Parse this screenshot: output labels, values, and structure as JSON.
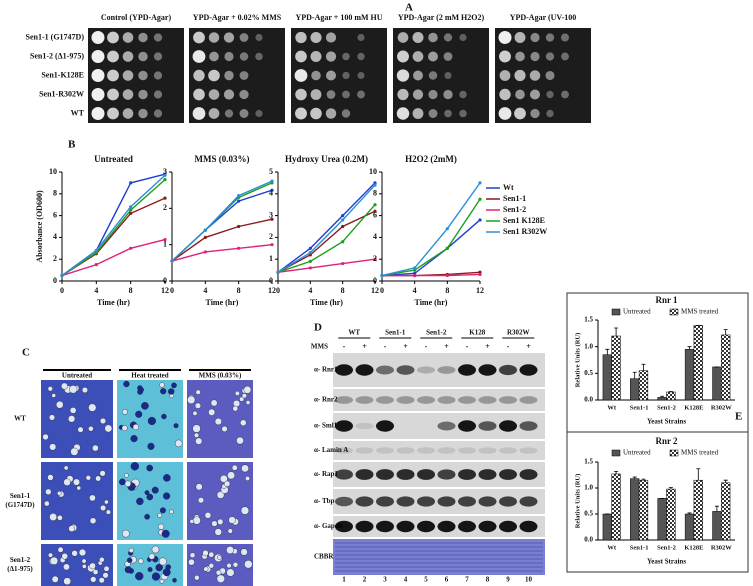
{
  "panel_labels": [
    "A",
    "B",
    "C",
    "D",
    "E"
  ],
  "panel_a": {
    "conditions": [
      "Control (YPD-Agar)",
      "YPD-Agar + 0.02% MMS",
      "YPD-Agar + 100 mM HU",
      "YPD-Agar (2 mM H2O2)",
      "YPD-Agar (UV-100"
    ],
    "strains": [
      "Sen1-1 (G1747D)",
      "Sen1-2 (Δ1-975)",
      "Sen1-K128E",
      "Sen1-R302W",
      "WT"
    ]
  },
  "chart_data": [
    {
      "type": "line",
      "title": "Untreated",
      "y_label": "Absorbance (OD600)",
      "x_label": "Time (hr)",
      "x": [
        0,
        4,
        8,
        12
      ],
      "xlim": [
        0,
        12
      ],
      "xticks": [
        0,
        4,
        8,
        12
      ],
      "ylim": [
        0,
        10
      ],
      "yticks": [
        0,
        2,
        4,
        6,
        8,
        10
      ],
      "series": [
        {
          "name": "Wt",
          "color": "#1f3fd6",
          "values": [
            0.5,
            2.8,
            9,
            9.8
          ]
        },
        {
          "name": "Sen1-1",
          "color": "#8b1a1a",
          "values": [
            0.5,
            2.5,
            6.2,
            7.6
          ]
        },
        {
          "name": "Sen1-2",
          "color": "#e0207a",
          "values": [
            0.5,
            1.5,
            3,
            3.8
          ]
        },
        {
          "name": "Sen1 K128E",
          "color": "#1e9e1e",
          "values": [
            0.5,
            2.6,
            6.5,
            9.3
          ]
        },
        {
          "name": "Sen1 R302W",
          "color": "#2a8fd8",
          "values": [
            0.5,
            2.8,
            6.8,
            9.7
          ]
        }
      ]
    },
    {
      "type": "line",
      "title": "MMS (0.03%)",
      "x_label": "Time (hr)",
      "x": [
        0,
        4,
        8,
        12
      ],
      "xlim": [
        0,
        12
      ],
      "xticks": [
        0,
        4,
        8,
        12
      ],
      "ylim": [
        0,
        3
      ],
      "yticks": [
        0,
        1,
        2,
        3
      ],
      "series": [
        {
          "name": "Wt",
          "color": "#1f3fd6",
          "values": [
            0.55,
            1.4,
            2.2,
            2.5
          ]
        },
        {
          "name": "Sen1-1",
          "color": "#8b1a1a",
          "values": [
            0.55,
            1.2,
            1.5,
            1.7
          ]
        },
        {
          "name": "Sen1-2",
          "color": "#e0207a",
          "values": [
            0.55,
            0.8,
            0.9,
            1.0
          ]
        },
        {
          "name": "Sen1 K128E",
          "color": "#1e9e1e",
          "values": [
            0.55,
            1.4,
            2.3,
            2.7
          ]
        },
        {
          "name": "Sen1 R302W",
          "color": "#2a8fd8",
          "values": [
            0.55,
            1.4,
            2.35,
            2.75
          ]
        }
      ]
    },
    {
      "type": "line",
      "title": "Hydroxy Urea (0.2M)",
      "x_label": "Time (hr)",
      "x": [
        0,
        4,
        8,
        12
      ],
      "xlim": [
        0,
        12
      ],
      "xticks": [
        0,
        4,
        8,
        12
      ],
      "ylim": [
        0,
        5
      ],
      "yticks": [
        0,
        1,
        2,
        3,
        4,
        5
      ],
      "series": [
        {
          "name": "Wt",
          "color": "#1f3fd6",
          "values": [
            0.4,
            1.5,
            3,
            4.5
          ]
        },
        {
          "name": "Sen1-1",
          "color": "#8b1a1a",
          "values": [
            0.4,
            1.2,
            2.5,
            3.2
          ]
        },
        {
          "name": "Sen1-2",
          "color": "#e0207a",
          "values": [
            0.4,
            0.6,
            0.8,
            1.0
          ]
        },
        {
          "name": "Sen1 K128E",
          "color": "#1e9e1e",
          "values": [
            0.4,
            0.9,
            1.8,
            3.5
          ]
        },
        {
          "name": "Sen1 R302W",
          "color": "#2a8fd8",
          "values": [
            0.4,
            1.3,
            2.8,
            4.4
          ]
        }
      ]
    },
    {
      "type": "line",
      "title": "H2O2 (2mM)",
      "x_label": "Time (hr)",
      "x": [
        0,
        4,
        8,
        12
      ],
      "xlim": [
        0,
        12
      ],
      "xticks": [
        0,
        4,
        8,
        12
      ],
      "ylim": [
        0,
        10
      ],
      "yticks": [
        0,
        2,
        4,
        6,
        8,
        10
      ],
      "series": [
        {
          "name": "Wt",
          "color": "#1f3fd6",
          "values": [
            0.5,
            0.7,
            3,
            5.6
          ]
        },
        {
          "name": "Sen1-1",
          "color": "#8b1a1a",
          "values": [
            0.5,
            0.5,
            0.6,
            0.8
          ]
        },
        {
          "name": "Sen1-2",
          "color": "#e0207a",
          "values": [
            0.5,
            0.5,
            0.5,
            0.6
          ]
        },
        {
          "name": "Sen1 K128E",
          "color": "#1e9e1e",
          "values": [
            0.5,
            1,
            3,
            7.5
          ]
        },
        {
          "name": "Sen1 R302W",
          "color": "#2a8fd8",
          "values": [
            0.5,
            1.2,
            4.8,
            9
          ]
        }
      ]
    },
    {
      "type": "bar",
      "title": "Rnr 1",
      "y_label": "Relative Units (RU)",
      "x_label": "Yeast Strains",
      "categories": [
        "Wt",
        "Sen1-1",
        "Sen1-2",
        "K128E",
        "R302W"
      ],
      "ylim": [
        0,
        1.5
      ],
      "yticks": [
        {
          "value": 0,
          "label": "0.0"
        },
        0.5,
        {
          "value": 1,
          "label": "1.0"
        },
        1.5
      ],
      "series": [
        {
          "name": "Untreated",
          "color": "#555555",
          "values": [
            0.85,
            0.4,
            0.05,
            0.95,
            0.62
          ],
          "errors": [
            0.1,
            0.12,
            0.02,
            0.05,
            0
          ]
        },
        {
          "name": "MMS treated",
          "color": "checkered",
          "values": [
            1.2,
            0.55,
            0.15,
            1.4,
            1.22
          ],
          "errors": [
            0.15,
            0.12,
            0.01,
            0,
            0.1
          ]
        }
      ]
    },
    {
      "type": "bar",
      "title": "Rnr 2",
      "y_label": "Relative Units (RU)",
      "x_label": "Yeast Strains",
      "categories": [
        "Wt",
        "Sen1-1",
        "Sen1-2",
        "K128E",
        "R302W"
      ],
      "ylim": [
        0,
        1.5
      ],
      "yticks": [
        {
          "value": 0,
          "label": "0.0"
        },
        0.5,
        {
          "value": 1,
          "label": "1.0"
        },
        1.5
      ],
      "series": [
        {
          "name": "Untreated",
          "color": "#555555",
          "values": [
            0.5,
            1.18,
            0.8,
            0.5,
            0.55
          ],
          "errors": [
            0,
            0.03,
            0,
            0.02,
            0.1
          ]
        },
        {
          "name": "MMS treated",
          "color": "checkered",
          "values": [
            1.27,
            1.15,
            0.98,
            1.15,
            1.1
          ],
          "errors": [
            0.05,
            0.02,
            0.03,
            0.22,
            0.05
          ]
        }
      ]
    }
  ],
  "panel_c": {
    "columns": [
      "Untreated",
      "Heat treated",
      "MMS (0.03%)"
    ],
    "rows": [
      [
        "WT"
      ],
      [
        "Sen1-1",
        "(G1747D)"
      ],
      [
        "Sen1-2",
        "(Δ1-975)"
      ]
    ]
  },
  "panel_d": {
    "strains": [
      "WT",
      "Sen1-1",
      "Sen1-2",
      "K128",
      "R302W"
    ],
    "treatment_label": "MMS",
    "treatment_marks": [
      "-",
      "+"
    ],
    "antibodies": [
      "α- Rnr1",
      "α- Rnr2",
      "α- Sml1",
      "α- Lamin A",
      "α- Rap1",
      "α- Tbp",
      "α- Gapdh",
      "CBBR"
    ],
    "lanes": [
      1,
      2,
      3,
      4,
      5,
      6,
      7,
      8,
      9,
      10
    ]
  }
}
